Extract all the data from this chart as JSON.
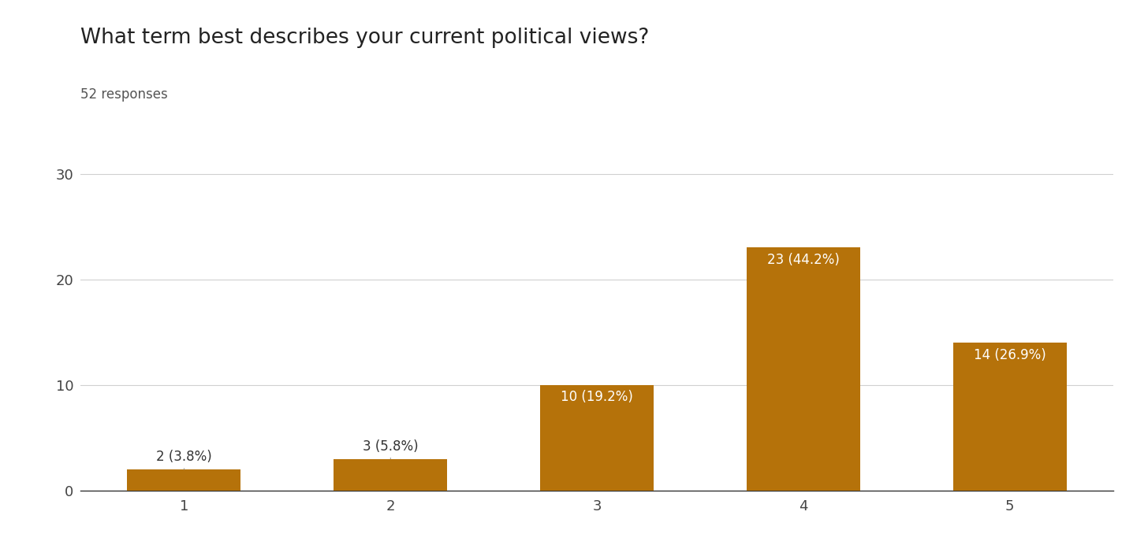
{
  "title": "What term best describes your current political views?",
  "subtitle": "52 responses",
  "categories": [
    1,
    2,
    3,
    4,
    5
  ],
  "values": [
    2,
    3,
    10,
    23,
    14
  ],
  "labels": [
    "2 (3.8%)",
    "3 (5.8%)",
    "10 (19.2%)",
    "23 (44.2%)",
    "14 (26.9%)"
  ],
  "bar_color": "#b5720a",
  "label_color_outside": "#333333",
  "label_color_inside": "#ffffff",
  "background_color": "#ffffff",
  "title_fontsize": 19,
  "subtitle_fontsize": 12,
  "tick_fontsize": 13,
  "label_fontsize": 12,
  "ylim": [
    0,
    32
  ],
  "yticks": [
    0,
    10,
    20,
    30
  ],
  "grid_color": "#d0d0d0",
  "bar_width": 0.55,
  "outside_threshold": 5
}
